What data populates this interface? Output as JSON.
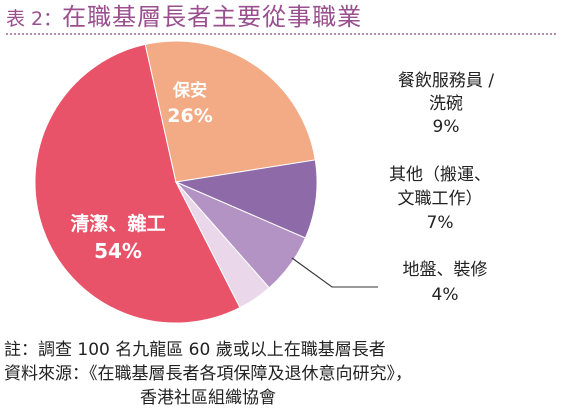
{
  "title": {
    "prefix": "表 2：",
    "text": "在職基層長者主要從事職業"
  },
  "chart_data": {
    "type": "pie",
    "title": "在職基層長者主要從事職業",
    "slices": [
      {
        "key": "cleaning",
        "lines": [
          "清潔、雜工"
        ],
        "value_label": "54%",
        "value": 54,
        "color": "#e8536a",
        "label_inside": true
      },
      {
        "key": "security",
        "lines": [
          "保安"
        ],
        "value_label": "26%",
        "value": 26,
        "color": "#f2ab85",
        "label_inside": true
      },
      {
        "key": "catering",
        "lines": [
          "餐飲服務員 /",
          "洗碗"
        ],
        "value_label": "9%",
        "value": 9,
        "color": "#8f6aa8",
        "label_inside": false
      },
      {
        "key": "others",
        "lines": [
          "其他（搬運、",
          "文職工作）"
        ],
        "value_label": "7%",
        "value": 7,
        "color": "#b392c4",
        "label_inside": false
      },
      {
        "key": "renovation",
        "lines": [
          "地盤、裝修"
        ],
        "value_label": "4%",
        "value": 4,
        "color": "#ead8ea",
        "label_inside": false
      }
    ]
  },
  "notes": {
    "note": "註：調查 100 名九龍區 60 歲或以上在職基層長者",
    "source": "資料來源：《在職基層長者各項保障及退休意向研究》，",
    "source_cont": "香港社區組織協會"
  }
}
